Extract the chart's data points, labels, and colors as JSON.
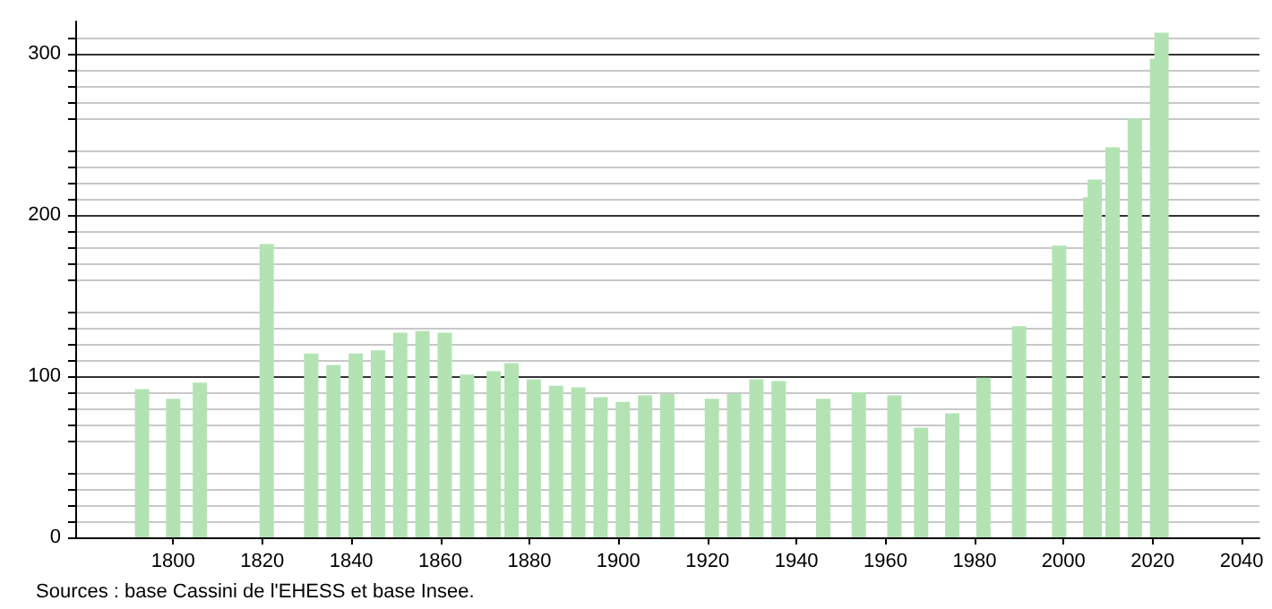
{
  "chart_data": {
    "type": "bar",
    "x": [
      1793,
      1800,
      1806,
      1821,
      1831,
      1836,
      1841,
      1846,
      1851,
      1856,
      1861,
      1866,
      1872,
      1876,
      1881,
      1886,
      1891,
      1896,
      1901,
      1906,
      1911,
      1921,
      1926,
      1931,
      1936,
      1946,
      1954,
      1962,
      1968,
      1975,
      1982,
      1990,
      1999,
      2006,
      2007,
      2011,
      2016,
      2021,
      2022
    ],
    "values": [
      92,
      86,
      96,
      182,
      114,
      107,
      114,
      116,
      127,
      128,
      127,
      101,
      103,
      108,
      98,
      94,
      93,
      87,
      84,
      88,
      89,
      86,
      89,
      98,
      97,
      86,
      90,
      88,
      68,
      77,
      99,
      131,
      181,
      211,
      222,
      242,
      260,
      297,
      313
    ],
    "color": "#b3e3b3",
    "xlim": [
      1778,
      2044
    ],
    "xticks": [
      1800,
      1820,
      1840,
      1860,
      1880,
      1900,
      1920,
      1940,
      1960,
      1980,
      2000,
      2020,
      2040
    ],
    "ylim": [
      0,
      320
    ],
    "yticks": [
      0,
      100,
      200,
      300
    ],
    "grid": "y",
    "annotations": [
      "Sources : base Cassini de l'EHESS et base Insee."
    ]
  }
}
